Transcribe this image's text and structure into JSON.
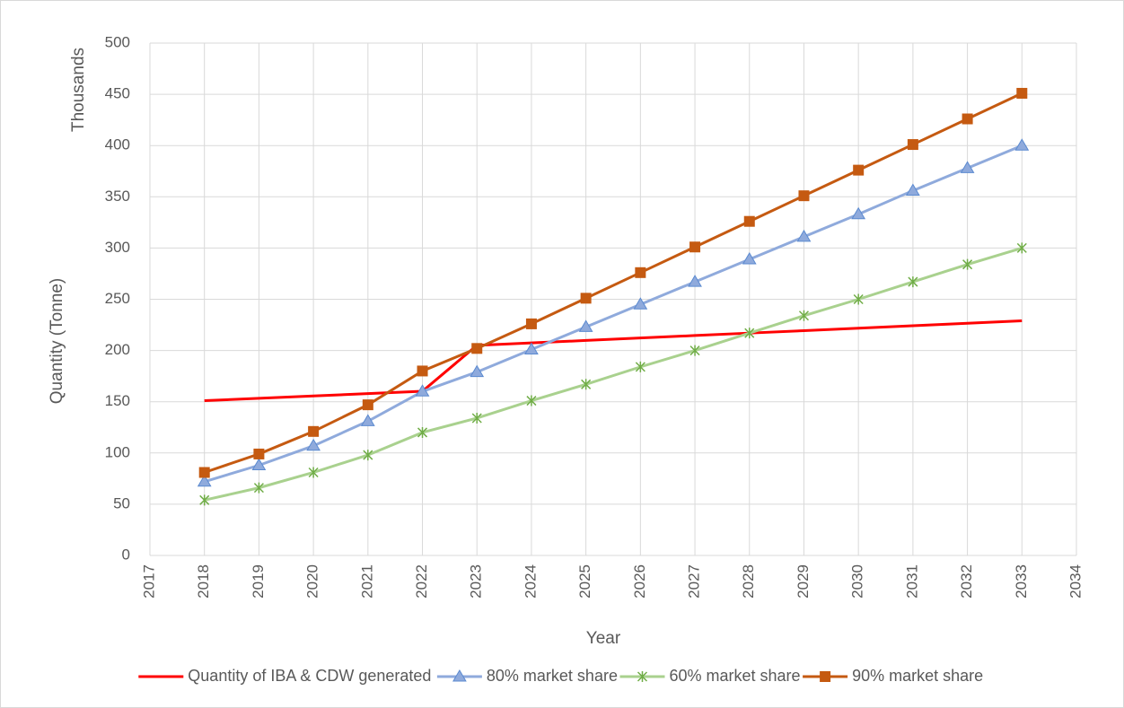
{
  "chart_data": {
    "type": "line",
    "x_label": "Year",
    "y_label": "Quantity (Tonne)",
    "y_unit_label": "Thousands",
    "x": [
      2018,
      2019,
      2020,
      2021,
      2022,
      2023,
      2024,
      2025,
      2026,
      2027,
      2028,
      2029,
      2030,
      2031,
      2032,
      2033
    ],
    "series": [
      {
        "name": "Quantity of IBA & CDW generated",
        "color": "#ff0000",
        "marker": "none",
        "values": [
          151,
          153.3,
          155.6,
          157.9,
          160.2,
          205,
          207.4,
          209.8,
          212.2,
          214.6,
          217,
          219.4,
          221.8,
          224.2,
          226.6,
          229
        ]
      },
      {
        "name": "80% market share",
        "color": "#8faadc",
        "marker": "triangle",
        "values": [
          72,
          88,
          107,
          131,
          160,
          179,
          201,
          223,
          245,
          267,
          289,
          311,
          333,
          356,
          378,
          400
        ]
      },
      {
        "name": "60% market share",
        "color": "#a9d18e",
        "marker": "asterisk",
        "values": [
          54,
          66,
          81,
          98,
          120,
          134,
          151,
          167,
          184,
          200,
          217,
          234,
          250,
          267,
          284,
          300
        ]
      },
      {
        "name": "90% market share",
        "color": "#c55a11",
        "marker": "square",
        "values": [
          81,
          99,
          121,
          147,
          180,
          202,
          226,
          251,
          276,
          301,
          326,
          351,
          376,
          401,
          426,
          451
        ]
      }
    ],
    "xlim": [
      2017,
      2034
    ],
    "xticks": [
      2017,
      2018,
      2019,
      2020,
      2021,
      2022,
      2023,
      2024,
      2025,
      2026,
      2027,
      2028,
      2029,
      2030,
      2031,
      2032,
      2033,
      2034
    ],
    "ylim": [
      0,
      500
    ],
    "yticks": [
      0,
      50,
      100,
      150,
      200,
      250,
      300,
      350,
      400,
      450,
      500
    ],
    "grid": true,
    "legend": "bottom"
  }
}
